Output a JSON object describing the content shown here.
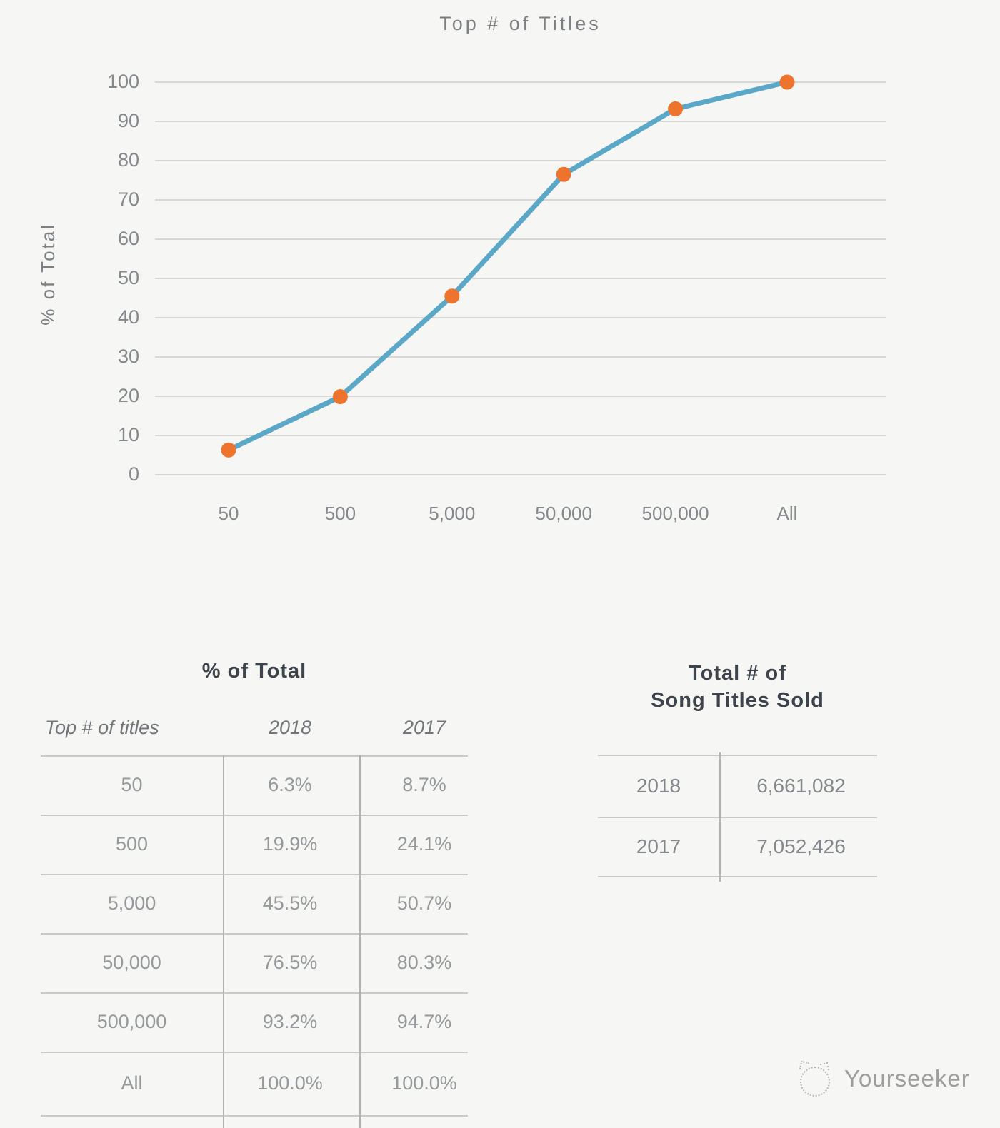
{
  "chart": {
    "title": "Top # of Titles",
    "y_axis_label": "% of Total",
    "y_ticks": [
      "100",
      "90",
      "80",
      "70",
      "60",
      "50",
      "40",
      "30",
      "20",
      "10",
      "0"
    ],
    "x_labels": [
      "50",
      "500",
      "5,000",
      "50,000",
      "500,000",
      "All"
    ]
  },
  "chart_data": {
    "type": "line",
    "title": "Top # of Titles",
    "xlabel": "Top # of titles",
    "ylabel": "% of Total",
    "categories": [
      "50",
      "500",
      "5,000",
      "50,000",
      "500,000",
      "All"
    ],
    "series": [
      {
        "name": "2018",
        "values": [
          6.3,
          19.9,
          45.5,
          76.5,
          93.2,
          100.0
        ]
      },
      {
        "name": "2017",
        "values": [
          8.7,
          24.1,
          50.7,
          80.3,
          94.7,
          100.0
        ]
      }
    ],
    "plotted_series": "2018",
    "ylim": [
      0,
      100
    ],
    "grid": true,
    "legend": "none",
    "line_color": "#5ba7c8",
    "marker_color": "#ee742e"
  },
  "left_table": {
    "title": "% of Total",
    "columns": [
      "Top # of titles",
      "2018",
      "2017"
    ],
    "rows": [
      {
        "label": "50",
        "p2018": "6.3%",
        "p2017": "8.7%"
      },
      {
        "label": "500",
        "p2018": "19.9%",
        "p2017": "24.1%"
      },
      {
        "label": "5,000",
        "p2018": "45.5%",
        "p2017": "50.7%"
      },
      {
        "label": "50,000",
        "p2018": "76.5%",
        "p2017": "80.3%"
      },
      {
        "label": "500,000",
        "p2018": "93.2%",
        "p2017": "94.7%"
      },
      {
        "label": "All",
        "p2018": "100.0%",
        "p2017": "100.0%"
      }
    ]
  },
  "right_table": {
    "title_line1": "Total # of",
    "title_line2": "Song Titles Sold",
    "rows": [
      {
        "label": "2018",
        "value": "6,661,082"
      },
      {
        "label": "2017",
        "value": "7,052,426"
      }
    ]
  },
  "watermark": {
    "text": "Yourseeker"
  }
}
